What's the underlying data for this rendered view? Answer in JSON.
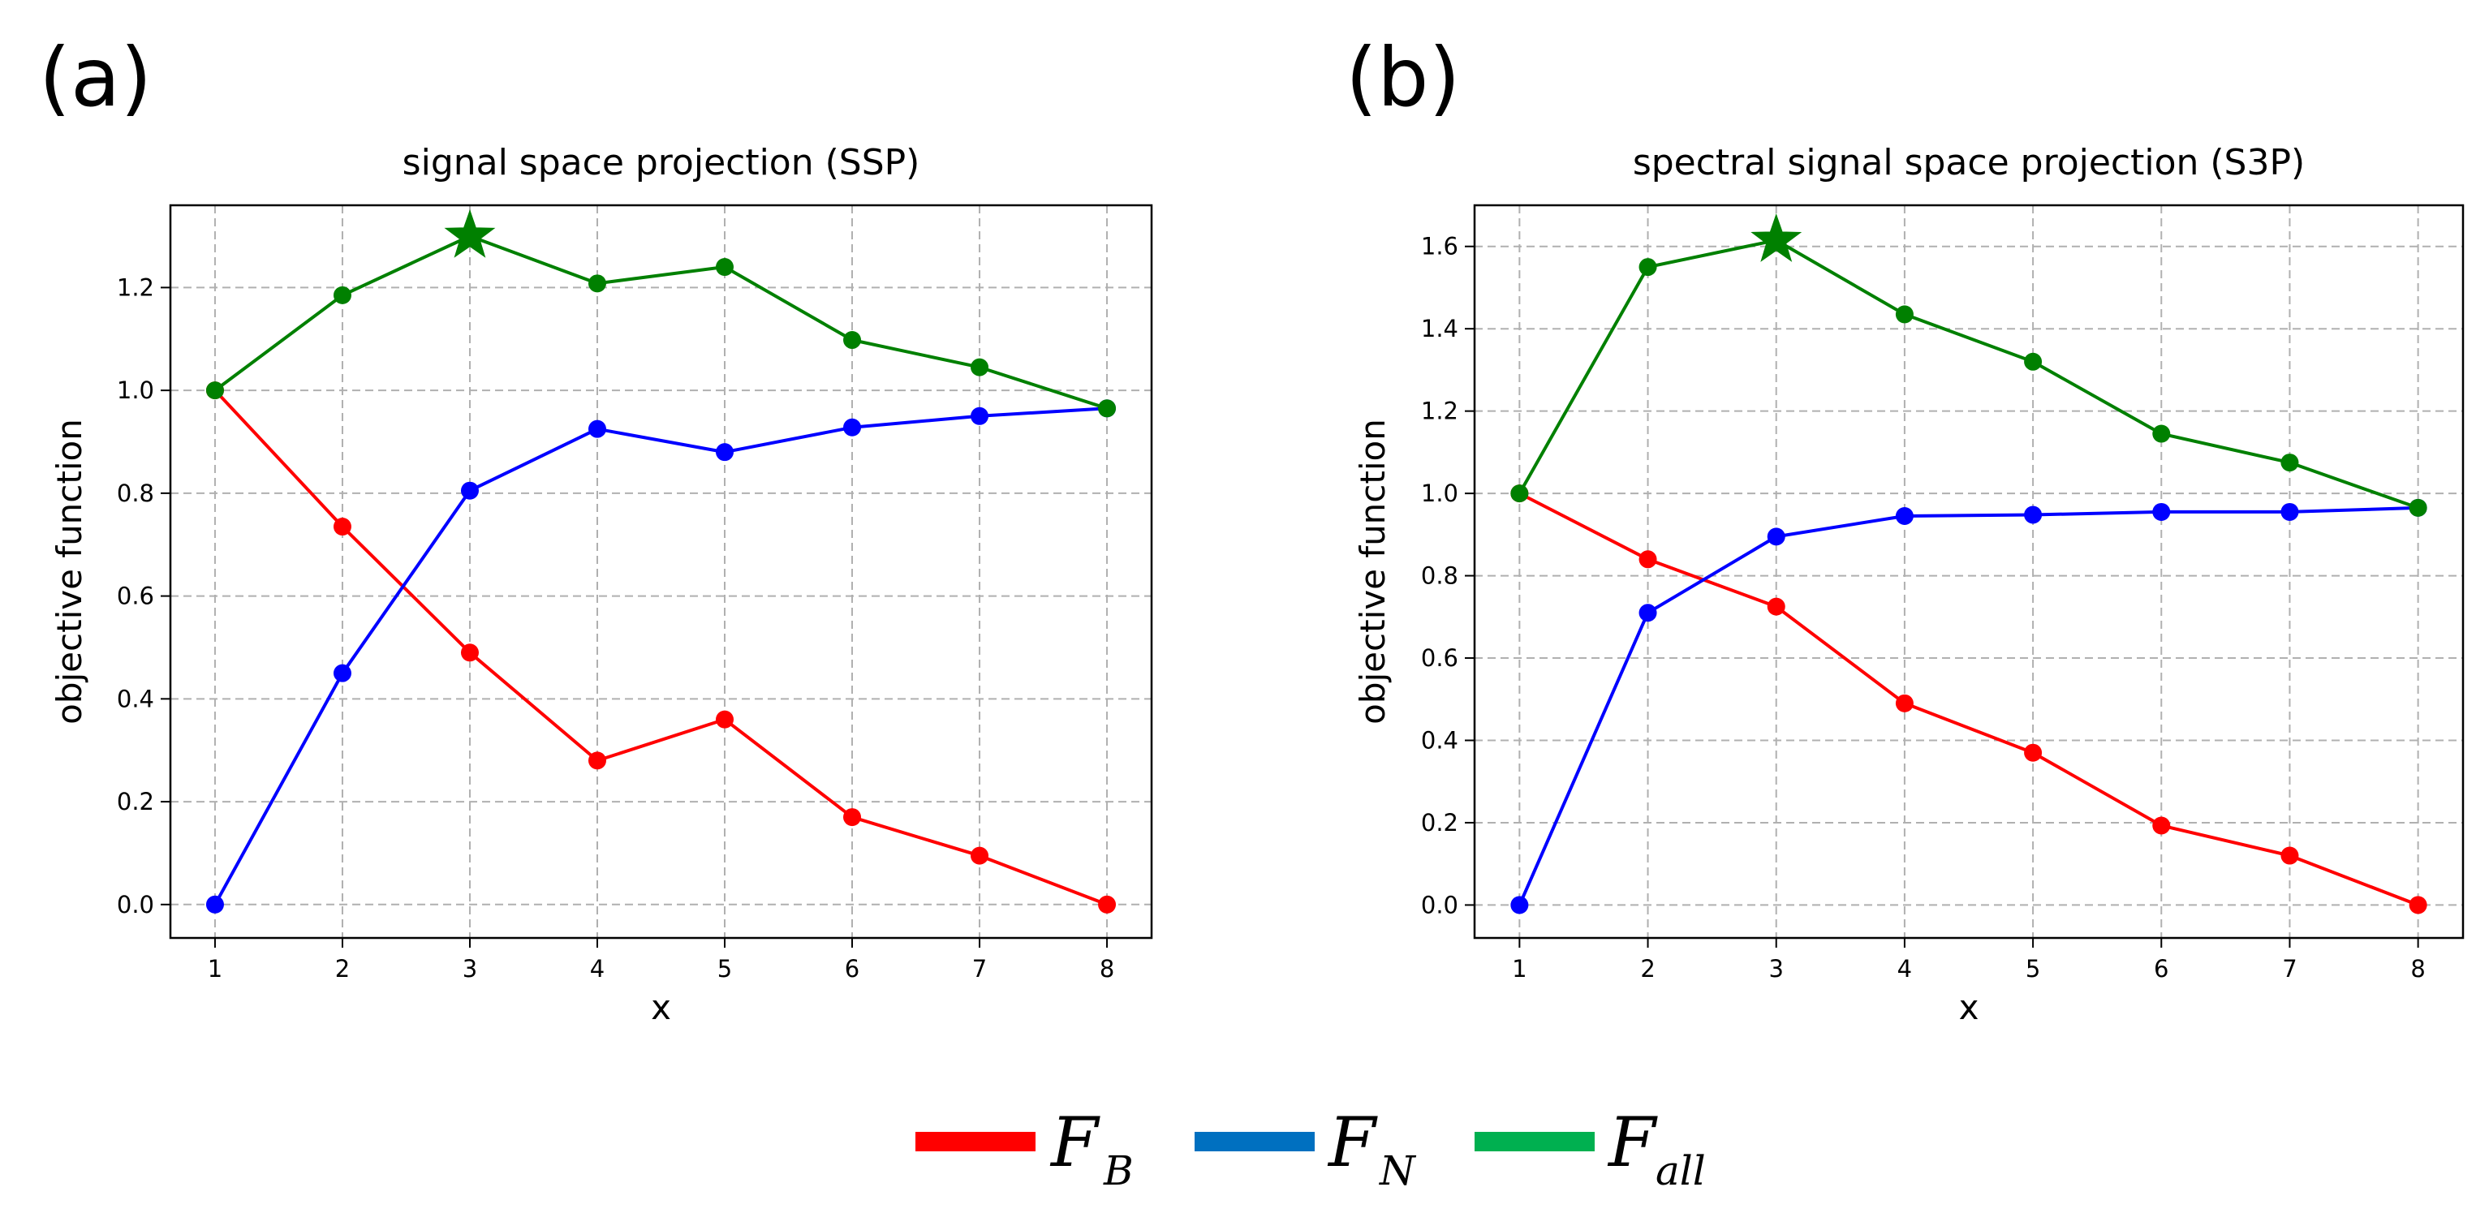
{
  "chart_data": [
    {
      "type": "line",
      "panel_label": "(a)",
      "title": "signal space projection (SSP)",
      "xlabel": "x",
      "ylabel": "objective function",
      "x": [
        1,
        2,
        3,
        4,
        5,
        6,
        7,
        8
      ],
      "xlim": [
        0.65,
        8.35
      ],
      "ylim": [
        -0.065,
        1.36
      ],
      "xticks": [
        1,
        2,
        3,
        4,
        5,
        6,
        7,
        8
      ],
      "yticks": [
        0.0,
        0.2,
        0.4,
        0.6,
        0.8,
        1.0,
        1.2
      ],
      "ytick_labels": [
        "0.0",
        "0.2",
        "0.4",
        "0.6",
        "0.8",
        "1.0",
        "1.2"
      ],
      "grid": true,
      "series": [
        {
          "name": "F_B",
          "color": "#ff0000",
          "values": [
            1.0,
            0.735,
            0.49,
            0.28,
            0.36,
            0.17,
            0.095,
            0.0
          ]
        },
        {
          "name": "F_N",
          "color": "#0000ff",
          "values": [
            0.0,
            0.45,
            0.805,
            0.925,
            0.88,
            0.928,
            0.95,
            0.965
          ]
        },
        {
          "name": "F_all",
          "color": "#008000",
          "values": [
            1.0,
            1.185,
            1.3,
            1.208,
            1.24,
            1.098,
            1.045,
            0.965
          ]
        }
      ],
      "annotation": {
        "type": "star",
        "x": 3,
        "y": 1.3,
        "color": "#008000"
      }
    },
    {
      "type": "line",
      "panel_label": "(b)",
      "title": "spectral signal space projection (S3P)",
      "xlabel": "x",
      "ylabel": "objective function",
      "x": [
        1,
        2,
        3,
        4,
        5,
        6,
        7,
        8
      ],
      "xlim": [
        0.65,
        8.35
      ],
      "ylim": [
        -0.08,
        1.7
      ],
      "xticks": [
        1,
        2,
        3,
        4,
        5,
        6,
        7,
        8
      ],
      "yticks": [
        0.0,
        0.2,
        0.4,
        0.6,
        0.8,
        1.0,
        1.2,
        1.4,
        1.6
      ],
      "ytick_labels": [
        "0.0",
        "0.2",
        "0.4",
        "0.6",
        "0.8",
        "1.0",
        "1.2",
        "1.4",
        "1.6"
      ],
      "grid": true,
      "series": [
        {
          "name": "F_B",
          "color": "#ff0000",
          "values": [
            1.0,
            0.84,
            0.725,
            0.49,
            0.37,
            0.193,
            0.12,
            0.0
          ]
        },
        {
          "name": "F_N",
          "color": "#0000ff",
          "values": [
            0.0,
            0.71,
            0.895,
            0.945,
            0.948,
            0.955,
            0.955,
            0.965
          ]
        },
        {
          "name": "F_all",
          "color": "#008000",
          "values": [
            1.0,
            1.55,
            1.615,
            1.435,
            1.32,
            1.145,
            1.075,
            0.965
          ]
        }
      ],
      "annotation": {
        "type": "star",
        "x": 3,
        "y": 1.615,
        "color": "#008000"
      }
    }
  ],
  "legend": {
    "position": "bottom-center",
    "entries": [
      {
        "symbol": "F",
        "subscript": "B",
        "color": "#ff0000"
      },
      {
        "symbol": "F",
        "subscript": "N",
        "color": "#0070c0"
      },
      {
        "symbol": "F",
        "subscript": "all",
        "color": "#00b050"
      }
    ]
  }
}
